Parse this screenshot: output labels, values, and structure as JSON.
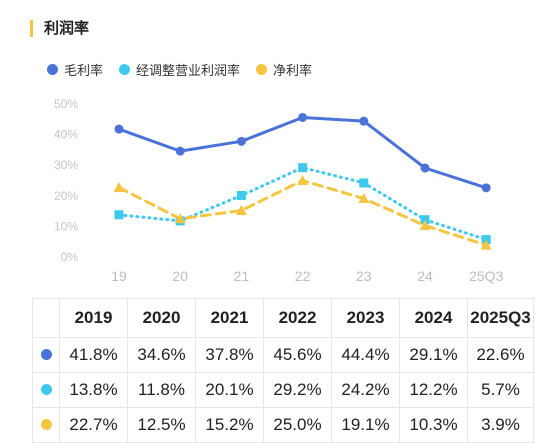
{
  "header": {
    "title": "利润率"
  },
  "colors": {
    "accent_bar": "#f5c542"
  },
  "chart_data": {
    "type": "line",
    "categories": [
      "19",
      "20",
      "21",
      "22",
      "23",
      "24",
      "25Q3"
    ],
    "y_ticks": [
      "0%",
      "10%",
      "20%",
      "30%",
      "40%",
      "50%"
    ],
    "ylim": [
      0,
      50
    ],
    "grid": false,
    "legend_position": "top-left",
    "series": [
      {
        "name": "毛利率",
        "values": [
          41.8,
          34.6,
          37.8,
          45.6,
          44.4,
          29.1,
          22.6
        ],
        "color": "#4a72d8",
        "style": "solid",
        "marker": "circle"
      },
      {
        "name": "经调整营业利润率",
        "values": [
          13.8,
          11.8,
          20.1,
          29.2,
          24.2,
          12.2,
          5.7
        ],
        "color": "#3fc8ee",
        "style": "dotted",
        "marker": "square"
      },
      {
        "name": "净利率",
        "values": [
          22.7,
          12.5,
          15.2,
          25.0,
          19.1,
          10.3,
          3.9
        ],
        "color": "#f5c542",
        "style": "dashed",
        "marker": "triangle"
      }
    ]
  },
  "table": {
    "headers": [
      "2019",
      "2020",
      "2021",
      "2022",
      "2023",
      "2024",
      "2025Q3"
    ],
    "rows": [
      {
        "color": "#4a72d8",
        "cells": [
          "41.8%",
          "34.6%",
          "37.8%",
          "45.6%",
          "44.4%",
          "29.1%",
          "22.6%"
        ]
      },
      {
        "color": "#3fc8ee",
        "cells": [
          "13.8%",
          "11.8%",
          "20.1%",
          "29.2%",
          "24.2%",
          "12.2%",
          "5.7%"
        ]
      },
      {
        "color": "#f5c542",
        "cells": [
          "22.7%",
          "12.5%",
          "15.2%",
          "25.0%",
          "19.1%",
          "10.3%",
          "3.9%"
        ]
      }
    ]
  }
}
